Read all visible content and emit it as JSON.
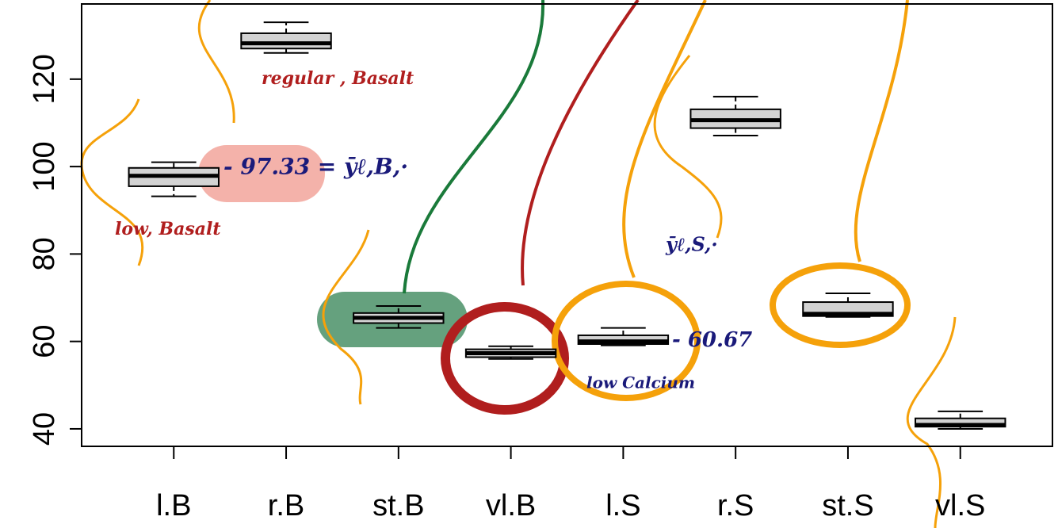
{
  "chart_data": {
    "type": "box",
    "categories": [
      "l.B",
      "r.B",
      "st.B",
      "vl.B",
      "l.S",
      "r.S",
      "st.S",
      "vl.S"
    ],
    "boxes": [
      {
        "whisker_low": 93.2,
        "q1": 95.5,
        "median": 97.9,
        "q3": 99.7,
        "whisker_high": 101
      },
      {
        "whisker_low": 126,
        "q1": 127,
        "median": 128.2,
        "q3": 130.5,
        "whisker_high": 133
      },
      {
        "whisker_low": 63.1,
        "q1": 64.2,
        "median": 65.4,
        "q3": 66.5,
        "whisker_high": 68.1
      },
      {
        "whisker_low": 56,
        "q1": 56.4,
        "median": 57.3,
        "q3": 58.2,
        "whisker_high": 58.9
      },
      {
        "whisker_low": 59.1,
        "q1": 59.4,
        "median": 60,
        "q3": 61.4,
        "whisker_high": 63.1
      },
      {
        "whisker_low": 107.1,
        "q1": 108.8,
        "median": 110.6,
        "q3": 113.1,
        "whisker_high": 116
      },
      {
        "whisker_low": 65.6,
        "q1": 65.8,
        "median": 66.3,
        "q3": 69,
        "whisker_high": 71
      },
      {
        "whisker_low": 40,
        "q1": 40.5,
        "median": 40.9,
        "q3": 42.4,
        "whisker_high": 44
      }
    ],
    "color": "#d3d3d3",
    "ylim": [
      36,
      137.2
    ],
    "yticks": [
      40,
      60,
      80,
      100,
      120
    ],
    "annotations": [
      "regular , Basalt",
      "low, Basalt",
      "- 97.33 = ȳℓ,B,·",
      "ȳℓ,S,·",
      "- 60.67",
      "low Calcium"
    ]
  }
}
